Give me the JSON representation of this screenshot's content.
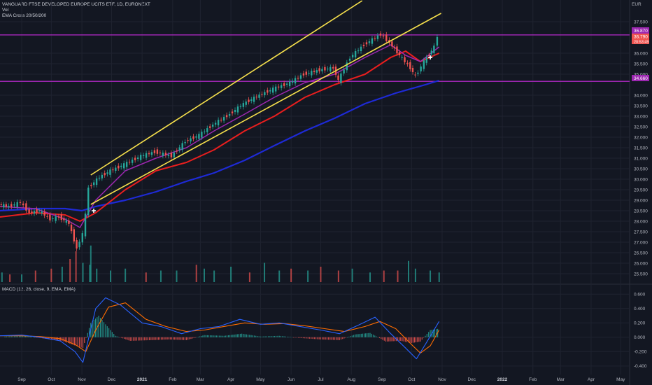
{
  "header": {
    "title": "VANGUARD FTSE DEVELOPED EUROPE UCITS ETF, 1D, EURONEXT",
    "vol_label": "Vol",
    "ema_label": "EMA Cross 20/50/200",
    "macd_label": "MACD (12, 26, close, 9, EMA, EMA)",
    "currency": "EUR"
  },
  "price_tags": {
    "resistance": "36.870",
    "last": "36.790",
    "countdown": "20:53:49",
    "support": "34.660"
  },
  "colors": {
    "background": "#131722",
    "grid": "#1f2330",
    "up": "#26a69a",
    "down": "#ef5350",
    "ema20": "#9c27b0",
    "ema50": "#e91e1e",
    "ema200": "#1e2ad6",
    "channel": "#f6e04c",
    "hline": "#9c27b0",
    "macd": "#2962ff",
    "signal": "#ff6d00"
  },
  "chart_data": [
    {
      "type": "line",
      "name": "price",
      "ylim": [
        25.2,
        38.2
      ],
      "yticks": [
        "37.500",
        "36.000",
        "35.500",
        "35.000",
        "34.000",
        "33.500",
        "33.000",
        "32.500",
        "32.000",
        "31.500",
        "31.000",
        "30.500",
        "30.000",
        "29.500",
        "29.000",
        "28.500",
        "28.000",
        "27.500",
        "27.000",
        "26.500",
        "26.000",
        "25.500"
      ],
      "ytick_values": [
        37.5,
        36.0,
        35.5,
        35.0,
        34.0,
        33.5,
        33.0,
        32.5,
        32.0,
        31.5,
        31.0,
        30.5,
        30.0,
        29.5,
        29.0,
        28.5,
        28.0,
        27.5,
        27.0,
        26.5,
        26.0,
        25.5
      ],
      "xlim": [
        "2020-08-10",
        "2022-05-10"
      ],
      "xticks": [
        {
          "date": "2020-09-01",
          "label": "Sep",
          "year": false
        },
        {
          "date": "2020-10-01",
          "label": "Oct",
          "year": false
        },
        {
          "date": "2020-11-01",
          "label": "Nov",
          "year": false
        },
        {
          "date": "2020-12-01",
          "label": "Dec",
          "year": false
        },
        {
          "date": "2021-01-01",
          "label": "2021",
          "year": true
        },
        {
          "date": "2021-02-01",
          "label": "Feb",
          "year": false
        },
        {
          "date": "2021-03-01",
          "label": "Mar",
          "year": false
        },
        {
          "date": "2021-04-01",
          "label": "Apr",
          "year": false
        },
        {
          "date": "2021-05-01",
          "label": "May",
          "year": false
        },
        {
          "date": "2021-06-01",
          "label": "Jun",
          "year": false
        },
        {
          "date": "2021-07-01",
          "label": "Jul",
          "year": false
        },
        {
          "date": "2021-08-01",
          "label": "Aug",
          "year": false
        },
        {
          "date": "2021-09-01",
          "label": "Sep",
          "year": false
        },
        {
          "date": "2021-10-01",
          "label": "Oct",
          "year": false
        },
        {
          "date": "2021-11-01",
          "label": "Nov",
          "year": false
        },
        {
          "date": "2021-12-01",
          "label": "Dec",
          "year": false
        },
        {
          "date": "2022-01-01",
          "label": "2022",
          "year": true
        },
        {
          "date": "2022-02-01",
          "label": "Feb",
          "year": false
        },
        {
          "date": "2022-03-01",
          "label": "Mar",
          "year": false
        },
        {
          "date": "2022-04-01",
          "label": "Apr",
          "year": false
        },
        {
          "date": "2022-05-01",
          "label": "May",
          "year": false
        }
      ],
      "close_series": {
        "x": [
          "2020-08-10",
          "2020-08-20",
          "2020-09-01",
          "2020-09-10",
          "2020-09-20",
          "2020-10-01",
          "2020-10-10",
          "2020-10-20",
          "2020-10-28",
          "2020-11-03",
          "2020-11-06",
          "2020-11-09",
          "2020-11-20",
          "2020-12-01",
          "2020-12-15",
          "2021-01-01",
          "2021-01-15",
          "2021-02-01",
          "2021-02-15",
          "2021-03-01",
          "2021-03-15",
          "2021-04-01",
          "2021-04-15",
          "2021-05-01",
          "2021-05-15",
          "2021-06-01",
          "2021-06-15",
          "2021-07-01",
          "2021-07-15",
          "2021-07-20",
          "2021-08-01",
          "2021-08-15",
          "2021-09-01",
          "2021-09-10",
          "2021-09-20",
          "2021-10-01",
          "2021-10-06",
          "2021-10-15",
          "2021-10-25",
          "2021-10-29"
        ],
        "y": [
          28.8,
          28.7,
          28.9,
          28.4,
          28.5,
          28.1,
          28.2,
          27.9,
          26.7,
          27.4,
          28.3,
          29.6,
          30.1,
          30.4,
          30.7,
          31.1,
          31.3,
          31.1,
          31.8,
          32.1,
          32.6,
          33.1,
          33.6,
          34.0,
          34.3,
          34.6,
          35.0,
          35.2,
          35.3,
          34.7,
          35.8,
          36.4,
          36.9,
          36.5,
          35.9,
          35.3,
          34.9,
          35.6,
          36.3,
          36.8
        ]
      },
      "ema20": {
        "x": [
          "2020-08-10",
          "2020-09-15",
          "2020-10-15",
          "2020-10-30",
          "2020-11-15",
          "2020-12-15",
          "2021-01-15",
          "2021-02-15",
          "2021-03-15",
          "2021-04-15",
          "2021-05-15",
          "2021-06-15",
          "2021-07-15",
          "2021-08-15",
          "2021-09-10",
          "2021-09-25",
          "2021-10-10",
          "2021-10-29"
        ],
        "y": [
          28.7,
          28.6,
          28.1,
          27.7,
          29.0,
          30.4,
          31.0,
          31.5,
          32.3,
          33.1,
          33.9,
          34.6,
          35.0,
          35.8,
          36.4,
          35.9,
          35.6,
          36.3
        ]
      },
      "ema50": {
        "x": [
          "2020-08-10",
          "2020-09-15",
          "2020-10-15",
          "2020-10-30",
          "2020-11-15",
          "2020-12-15",
          "2021-01-15",
          "2021-02-15",
          "2021-03-15",
          "2021-04-15",
          "2021-05-15",
          "2021-06-15",
          "2021-07-15",
          "2021-08-15",
          "2021-09-10",
          "2021-09-25",
          "2021-10-10",
          "2021-10-29"
        ],
        "y": [
          28.2,
          28.4,
          28.3,
          28.0,
          28.4,
          29.5,
          30.4,
          30.8,
          31.4,
          32.3,
          33.0,
          33.9,
          34.5,
          35.0,
          35.8,
          36.1,
          35.6,
          36.0
        ]
      },
      "ema200": {
        "x": [
          "2020-08-10",
          "2020-09-15",
          "2020-10-15",
          "2020-11-01",
          "2020-11-15",
          "2020-12-15",
          "2021-01-15",
          "2021-02-15",
          "2021-03-15",
          "2021-04-15",
          "2021-05-15",
          "2021-06-15",
          "2021-07-15",
          "2021-08-15",
          "2021-09-15",
          "2021-10-15",
          "2021-10-29"
        ],
        "y": [
          28.5,
          28.6,
          28.6,
          28.5,
          28.7,
          29.0,
          29.4,
          29.9,
          30.3,
          30.9,
          31.6,
          32.3,
          32.9,
          33.6,
          34.1,
          34.5,
          34.7
        ]
      },
      "channel_upper": {
        "x": [
          "2020-11-10",
          "2021-08-12"
        ],
        "y": [
          30.2,
          38.5
        ]
      },
      "channel_lower": {
        "x": [
          "2020-11-10",
          "2021-10-31"
        ],
        "y": [
          28.8,
          37.9
        ]
      },
      "hlines": [
        36.87,
        34.66
      ],
      "markers": [
        {
          "date": "2020-11-13",
          "price": 28.5,
          "text": "✚"
        },
        {
          "date": "2021-10-20",
          "price": 35.8,
          "text": "✚"
        }
      ]
    },
    {
      "type": "bar",
      "name": "Vol",
      "x": [
        "2020-08-12",
        "2020-08-20",
        "2020-09-01",
        "2020-09-15",
        "2020-10-01",
        "2020-10-12",
        "2020-10-20",
        "2020-10-26",
        "2020-11-02",
        "2020-11-09",
        "2020-11-10",
        "2020-11-16",
        "2020-11-30",
        "2020-12-15",
        "2021-01-05",
        "2021-01-20",
        "2021-02-05",
        "2021-02-25",
        "2021-03-05",
        "2021-03-15",
        "2021-04-01",
        "2021-04-20",
        "2021-05-05",
        "2021-05-20",
        "2021-06-01",
        "2021-06-18",
        "2021-07-01",
        "2021-07-19",
        "2021-08-02",
        "2021-08-20",
        "2021-09-03",
        "2021-09-17",
        "2021-09-28",
        "2021-10-05",
        "2021-10-20",
        "2021-10-29"
      ],
      "values": [
        0.25,
        0.2,
        0.2,
        0.3,
        0.35,
        0.4,
        0.6,
        0.8,
        0.5,
        0.45,
        0.95,
        0.35,
        0.3,
        0.35,
        0.25,
        0.3,
        0.3,
        0.45,
        0.35,
        0.3,
        0.4,
        0.25,
        0.5,
        0.3,
        0.35,
        0.3,
        0.4,
        0.3,
        0.35,
        0.25,
        0.3,
        0.3,
        0.55,
        0.35,
        0.3,
        0.25
      ],
      "up": [
        true,
        false,
        true,
        false,
        false,
        true,
        false,
        false,
        true,
        true,
        true,
        true,
        true,
        true,
        false,
        true,
        true,
        false,
        true,
        true,
        true,
        false,
        true,
        true,
        false,
        true,
        false,
        false,
        true,
        true,
        false,
        false,
        true,
        true,
        true,
        true
      ]
    },
    {
      "type": "line",
      "name": "MACD",
      "ylim": [
        -0.47,
        0.7
      ],
      "yticks": [
        "0.600",
        "0.400",
        "0.200",
        "0.000",
        "-0.200",
        "-0.400"
      ],
      "ytick_values": [
        0.6,
        0.4,
        0.2,
        0.0,
        -0.2,
        -0.4
      ],
      "macd": {
        "x": [
          "2020-08-10",
          "2020-09-01",
          "2020-09-20",
          "2020-10-10",
          "2020-10-25",
          "2020-11-02",
          "2020-11-15",
          "2020-11-25",
          "2020-12-10",
          "2021-01-01",
          "2021-01-20",
          "2021-02-10",
          "2021-03-01",
          "2021-03-20",
          "2021-04-10",
          "2021-05-01",
          "2021-05-20",
          "2021-06-10",
          "2021-07-01",
          "2021-07-20",
          "2021-08-10",
          "2021-08-25",
          "2021-09-10",
          "2021-09-25",
          "2021-10-06",
          "2021-10-15",
          "2021-10-29"
        ],
        "y": [
          0.02,
          0.03,
          0.0,
          -0.05,
          -0.2,
          -0.35,
          0.4,
          0.55,
          0.45,
          0.2,
          0.15,
          0.05,
          0.12,
          0.15,
          0.25,
          0.18,
          0.2,
          0.15,
          0.1,
          0.05,
          0.18,
          0.28,
          0.05,
          -0.15,
          -0.3,
          -0.1,
          0.22
        ]
      },
      "signal": {
        "x": [
          "2020-08-10",
          "2020-09-01",
          "2020-09-20",
          "2020-10-10",
          "2020-10-25",
          "2020-11-05",
          "2020-11-15",
          "2020-11-28",
          "2020-12-15",
          "2021-01-05",
          "2021-01-25",
          "2021-02-15",
          "2021-03-05",
          "2021-03-25",
          "2021-04-15",
          "2021-05-05",
          "2021-05-25",
          "2021-06-15",
          "2021-07-05",
          "2021-07-25",
          "2021-08-15",
          "2021-08-30",
          "2021-09-15",
          "2021-10-01",
          "2021-10-10",
          "2021-10-20",
          "2021-10-29"
        ],
        "y": [
          0.02,
          0.02,
          0.01,
          -0.02,
          -0.1,
          -0.2,
          0.1,
          0.42,
          0.48,
          0.25,
          0.15,
          0.08,
          0.1,
          0.15,
          0.2,
          0.18,
          0.19,
          0.16,
          0.12,
          0.08,
          0.15,
          0.22,
          0.12,
          -0.1,
          -0.22,
          -0.12,
          0.1
        ]
      },
      "histogram": {
        "x": [
          "2020-08-15",
          "2020-09-05",
          "2020-09-25",
          "2020-10-12",
          "2020-10-26",
          "2020-11-02",
          "2020-11-10",
          "2020-11-18",
          "2020-11-25",
          "2020-12-05",
          "2020-12-20",
          "2021-01-10",
          "2021-01-28",
          "2021-02-15",
          "2021-03-05",
          "2021-03-25",
          "2021-04-12",
          "2021-05-01",
          "2021-05-20",
          "2021-06-10",
          "2021-07-01",
          "2021-07-20",
          "2021-08-05",
          "2021-08-20",
          "2021-09-05",
          "2021-09-20",
          "2021-10-01",
          "2021-10-10",
          "2021-10-20",
          "2021-10-29"
        ],
        "values": [
          0.01,
          0.02,
          -0.02,
          -0.05,
          -0.12,
          -0.15,
          0.2,
          0.3,
          0.18,
          0.02,
          -0.05,
          -0.04,
          -0.03,
          -0.04,
          0.03,
          0.02,
          0.05,
          0.01,
          0.02,
          -0.01,
          -0.03,
          -0.04,
          0.04,
          0.06,
          -0.06,
          -0.05,
          -0.08,
          -0.06,
          0.1,
          0.12
        ]
      }
    }
  ]
}
